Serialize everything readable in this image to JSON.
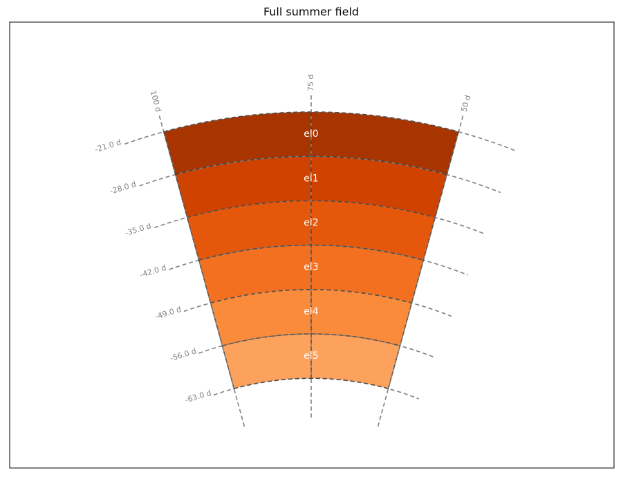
{
  "title": "Full summer field",
  "ra_labels": [
    "100 d",
    "75 d",
    "50 d"
  ],
  "dec_labels": [
    "-21.0 d",
    "-28.0 d",
    "-35.0 d",
    "-42.0 d",
    "-49.0 d",
    "-56.0 d",
    "-63.0 d"
  ],
  "regions": [
    {
      "label": "el0",
      "color": "#a83500"
    },
    {
      "label": "el1",
      "color": "#cf4200"
    },
    {
      "label": "el2",
      "color": "#e5570b"
    },
    {
      "label": "el3",
      "color": "#f2701f"
    },
    {
      "label": "el4",
      "color": "#fa8b3a"
    },
    {
      "label": "el5",
      "color": "#fda25d"
    }
  ]
}
